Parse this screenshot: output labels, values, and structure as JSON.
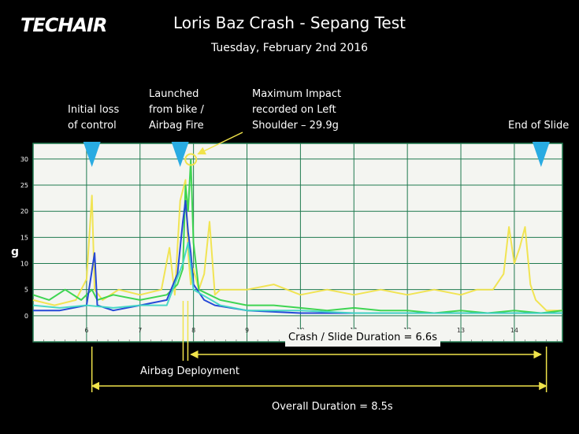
{
  "logo": {
    "text": "TECHAIR"
  },
  "header": {
    "title": "Loris Baz Crash - Sepang Test",
    "subtitle": "Tuesday, February 2nd 2016"
  },
  "annotations": {
    "initial_loss": [
      "Initial loss",
      "of control"
    ],
    "launched": [
      "Launched",
      "from bike /",
      "Airbag Fire"
    ],
    "max_impact": [
      "Maximum Impact",
      "recorded on Left",
      "Shoulder – 29.9g"
    ],
    "end_of_slide": "End of Slide",
    "crash_slide_duration": "Crash / Slide Duration = 6.6s",
    "airbag_deployment": "Airbag Deployment",
    "overall_duration": "Overall Duration = 8.5s"
  },
  "colors": {
    "background": "#000000",
    "plot_bg": "#f4f5f1",
    "grid": "#1f7a4f",
    "marker": "#29abe2",
    "annotation_line": "#f0e34a",
    "series_yellow": "#f0e34a",
    "series_green": "#35d34a",
    "series_blue": "#1a3fd6",
    "series_cyan": "#3fd6c4"
  },
  "chart_data": {
    "type": "line",
    "ylabel": "g",
    "xlabel": "",
    "xlim": [
      5.0,
      14.9
    ],
    "ylim": [
      -5,
      33
    ],
    "xticks": [
      "6",
      "7",
      "8",
      "9",
      "10",
      "11",
      "12",
      "13",
      "14"
    ],
    "yticks": [
      "0",
      "5",
      "10",
      "15",
      "20",
      "25",
      "30"
    ],
    "markers": [
      {
        "label": "Initial loss of control",
        "x": 6.1
      },
      {
        "label": "Launched from bike / Airbag Fire",
        "x": 7.75
      },
      {
        "label": "End of Slide",
        "x": 14.5
      }
    ],
    "max_impact": {
      "x": 7.95,
      "y": 29.9
    },
    "airbag_deployment_x": 7.85,
    "crash_slide_span": [
      7.95,
      14.5
    ],
    "overall_span": [
      6.1,
      14.6
    ],
    "series": [
      {
        "color": "yellow",
        "x": [
          5.0,
          5.4,
          5.8,
          6.0,
          6.1,
          6.15,
          6.3,
          6.6,
          7.0,
          7.4,
          7.55,
          7.65,
          7.75,
          7.85,
          7.9,
          7.95,
          8.0,
          8.1,
          8.2,
          8.3,
          8.4,
          8.5,
          9.0,
          9.5,
          10.0,
          10.5,
          11.0,
          11.5,
          12.0,
          12.5,
          13.0,
          13.3,
          13.6,
          13.8,
          13.9,
          14.0,
          14.1,
          14.2,
          14.3,
          14.4,
          14.6,
          14.9
        ],
        "y": [
          3,
          2,
          3,
          7,
          23,
          5,
          3,
          5,
          4,
          5,
          13,
          4,
          22,
          26,
          12,
          6,
          9,
          5,
          8,
          18,
          4,
          5,
          5,
          6,
          4,
          5,
          4,
          5,
          4,
          5,
          4,
          5,
          5,
          8,
          17,
          10,
          13,
          17,
          6,
          3,
          1,
          1
        ]
      },
      {
        "color": "green",
        "x": [
          5.0,
          5.3,
          5.6,
          5.9,
          6.1,
          6.2,
          6.5,
          7.0,
          7.5,
          7.7,
          7.8,
          7.85,
          7.9,
          7.95,
          8.0,
          8.1,
          8.3,
          8.5,
          9.0,
          9.5,
          10.0,
          10.5,
          11.0,
          11.5,
          12.0,
          12.5,
          13.0,
          13.5,
          14.0,
          14.5,
          14.9
        ],
        "y": [
          4,
          3,
          5,
          3,
          5,
          3,
          4,
          3,
          4,
          6,
          9,
          25,
          20,
          29.9,
          14,
          5,
          4,
          3,
          2,
          2,
          1.5,
          1,
          1.5,
          1,
          1,
          0.5,
          1,
          0.5,
          1,
          0.5,
          1
        ]
      },
      {
        "color": "blue",
        "x": [
          5.0,
          5.5,
          6.0,
          6.15,
          6.2,
          6.5,
          7.0,
          7.5,
          7.7,
          7.8,
          7.85,
          7.9,
          7.95,
          8.0,
          8.2,
          8.4,
          9.0,
          10.0,
          11.0,
          12.0,
          13.0,
          14.0,
          14.9
        ],
        "y": [
          1,
          1,
          2,
          12,
          2,
          1,
          2,
          3,
          8,
          18,
          22,
          16,
          12,
          6,
          3,
          2,
          1,
          0.5,
          0.5,
          0.5,
          0.5,
          0.5,
          0.5
        ]
      },
      {
        "color": "cyan",
        "x": [
          5.0,
          5.5,
          6.0,
          6.5,
          7.0,
          7.5,
          7.8,
          7.9,
          8.0,
          8.5,
          9.0,
          10.0,
          11.0,
          12.0,
          13.0,
          14.0,
          14.9
        ],
        "y": [
          2,
          1.5,
          2,
          1.5,
          2,
          2,
          10,
          14,
          5,
          2,
          1,
          1,
          0.5,
          0.5,
          0.5,
          0.5,
          0.5
        ]
      }
    ]
  }
}
